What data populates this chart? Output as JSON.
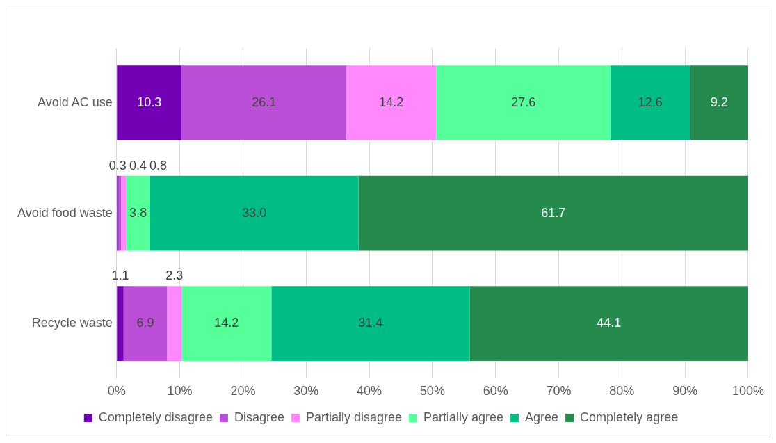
{
  "chart_data": {
    "type": "bar",
    "orientation": "horizontal",
    "stacked": true,
    "categories": [
      "Avoid AC use",
      "Avoid food waste",
      "Recycle waste"
    ],
    "series": [
      {
        "name": "Completely disagree",
        "color": "#7200b4",
        "values": [
          10.3,
          0.3,
          1.1
        ],
        "value_labels": [
          "10.3",
          "0.3",
          "1.1"
        ]
      },
      {
        "name": "Disagree",
        "color": "#bb4fd8",
        "values": [
          26.1,
          0.4,
          6.9
        ],
        "value_labels": [
          "26.1",
          "0.4",
          "6.9"
        ]
      },
      {
        "name": "Partially disagree",
        "color": "#ff88ff",
        "values": [
          14.2,
          0.8,
          2.3
        ],
        "value_labels": [
          "14.2",
          "0.8",
          "2.3"
        ]
      },
      {
        "name": "Partially agree",
        "color": "#55ff99",
        "values": [
          27.6,
          3.8,
          14.2
        ],
        "value_labels": [
          "27.6",
          "3.8",
          "14.2"
        ]
      },
      {
        "name": "Agree",
        "color": "#00bd86",
        "values": [
          12.6,
          33.0,
          31.4
        ],
        "value_labels": [
          "12.6",
          "33.0",
          "31.4"
        ]
      },
      {
        "name": "Completely agree",
        "color": "#268a4f",
        "values": [
          9.2,
          61.7,
          44.1
        ],
        "value_labels": [
          "9.2",
          "61.7",
          "44.1"
        ]
      }
    ],
    "xlim": [
      0,
      100
    ],
    "xticks": [
      {
        "value": 0,
        "label": "0%"
      },
      {
        "value": 10,
        "label": "10%"
      },
      {
        "value": 20,
        "label": "20%"
      },
      {
        "value": 30,
        "label": "30%"
      },
      {
        "value": 40,
        "label": "40%"
      },
      {
        "value": 50,
        "label": "50%"
      },
      {
        "value": 60,
        "label": "60%"
      },
      {
        "value": 70,
        "label": "70%"
      },
      {
        "value": 80,
        "label": "80%"
      },
      {
        "value": 90,
        "label": "90%"
      },
      {
        "value": 100,
        "label": "100%"
      }
    ],
    "grid": "x",
    "legend": "bottom"
  }
}
